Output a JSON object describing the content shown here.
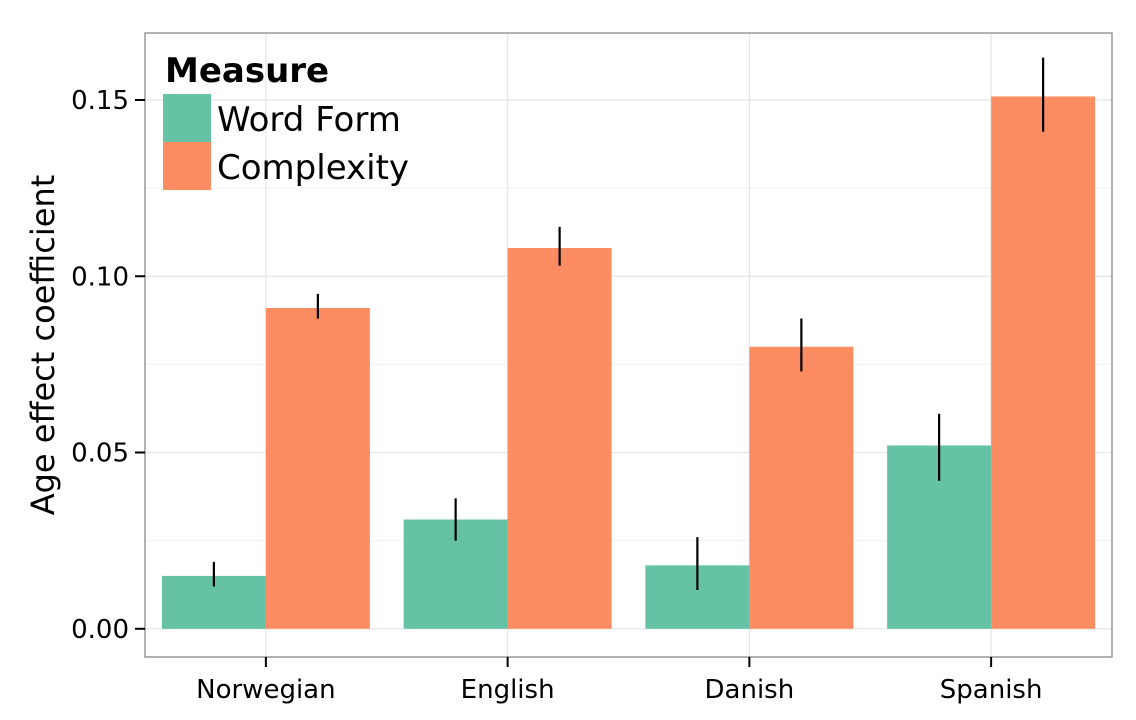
{
  "chart_data": {
    "type": "bar",
    "ylabel": "Age effect coefficient",
    "xlabel": "",
    "categories": [
      "Norwegian",
      "English",
      "Danish",
      "Spanish"
    ],
    "ylim": [
      -0.008,
      0.169
    ],
    "yticks": [
      "0.00",
      "0.05",
      "0.10",
      "0.15"
    ],
    "ytick_values": [
      0.0,
      0.05,
      0.1,
      0.15
    ],
    "grid": true,
    "legend": {
      "title": "Measure",
      "position": "top-left"
    },
    "series": [
      {
        "name": "Word Form",
        "color": "#66c2a5",
        "values": [
          0.015,
          0.031,
          0.018,
          0.052
        ],
        "error_low": [
          0.012,
          0.025,
          0.011,
          0.042
        ],
        "error_high": [
          0.019,
          0.037,
          0.026,
          0.061
        ]
      },
      {
        "name": "Complexity",
        "color": "#fc8d62",
        "values": [
          0.091,
          0.108,
          0.08,
          0.151
        ],
        "error_low": [
          0.088,
          0.103,
          0.073,
          0.141
        ],
        "error_high": [
          0.095,
          0.114,
          0.088,
          0.162
        ]
      }
    ]
  }
}
